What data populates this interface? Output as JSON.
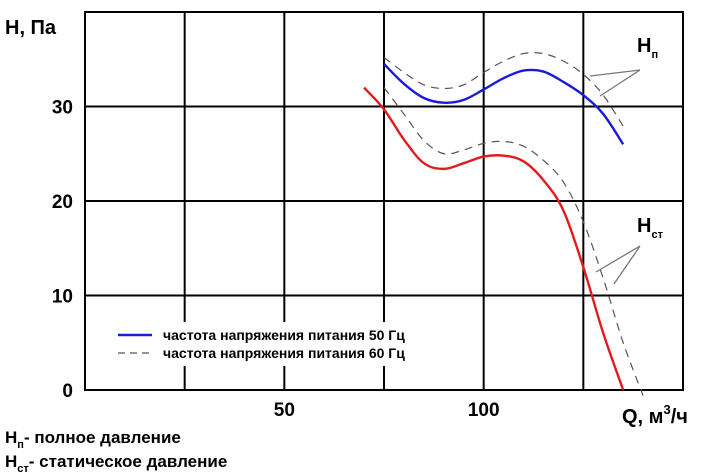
{
  "chart_data": {
    "type": "line",
    "x_axis": {
      "label": "Q, м",
      "label_sup": "3",
      "label_tail": "/ч",
      "ticks": [
        50,
        100
      ],
      "range": [
        0,
        150
      ]
    },
    "y_axis": {
      "label": "H, Па",
      "ticks": [
        0,
        10,
        20,
        30
      ],
      "range": [
        0,
        40
      ]
    },
    "grid": true,
    "legend": {
      "placement": "bottom-left",
      "entries": [
        {
          "label": "частота напряжения питания 50 Гц",
          "style": "solid",
          "color": "#1a1adb"
        },
        {
          "label": "частота напряжения питания 60 Гц",
          "style": "dashed",
          "color": "#555555"
        }
      ]
    },
    "series": [
      {
        "name": "Hп 50 Гц",
        "color": "#1a1adb",
        "style": "solid",
        "points": [
          [
            75,
            34.5
          ],
          [
            80,
            32.4
          ],
          [
            85,
            30.9
          ],
          [
            90,
            30.4
          ],
          [
            95,
            30.7
          ],
          [
            100,
            31.8
          ],
          [
            105,
            33.0
          ],
          [
            110,
            33.8
          ],
          [
            115,
            33.7
          ],
          [
            120,
            32.6
          ],
          [
            125,
            31.2
          ],
          [
            130,
            29.2
          ],
          [
            135,
            26.0
          ]
        ]
      },
      {
        "name": "Hп 60 Гц",
        "color": "#555555",
        "style": "dashed",
        "points": [
          [
            75,
            35.2
          ],
          [
            80,
            33.6
          ],
          [
            85,
            32.3
          ],
          [
            90,
            31.9
          ],
          [
            95,
            32.3
          ],
          [
            100,
            33.6
          ],
          [
            105,
            34.8
          ],
          [
            110,
            35.6
          ],
          [
            115,
            35.6
          ],
          [
            120,
            34.8
          ],
          [
            125,
            33.4
          ],
          [
            130,
            31.2
          ],
          [
            135,
            27.9
          ]
        ]
      },
      {
        "name": "Hст 50 Гц",
        "color": "#e01c1c",
        "style": "solid",
        "points": [
          [
            70,
            32.0
          ],
          [
            75,
            29.7
          ],
          [
            80,
            26.5
          ],
          [
            85,
            24.0
          ],
          [
            90,
            23.4
          ],
          [
            95,
            24.0
          ],
          [
            100,
            24.7
          ],
          [
            105,
            24.8
          ],
          [
            110,
            24.2
          ],
          [
            115,
            22.2
          ],
          [
            120,
            19.0
          ],
          [
            125,
            13.0
          ],
          [
            130,
            6.0
          ],
          [
            135,
            0.0
          ]
        ]
      },
      {
        "name": "Hст 60 Гц",
        "color": "#555555",
        "style": "dashed",
        "points": [
          [
            75,
            32.0
          ],
          [
            80,
            29.2
          ],
          [
            85,
            26.4
          ],
          [
            90,
            25.0
          ],
          [
            95,
            25.4
          ],
          [
            100,
            26.1
          ],
          [
            105,
            26.3
          ],
          [
            110,
            25.8
          ],
          [
            115,
            24.3
          ],
          [
            120,
            22.0
          ],
          [
            125,
            17.8
          ],
          [
            130,
            11.8
          ],
          [
            135,
            5.0
          ],
          [
            140,
            -0.6
          ]
        ]
      }
    ],
    "curve_labels": [
      {
        "main": "H",
        "sub": "п"
      },
      {
        "main": "H",
        "sub": "ст"
      }
    ],
    "notes": [
      {
        "main": "H",
        "sub": "п",
        "text": "- полное давление"
      },
      {
        "main": "H",
        "sub": "ст",
        "text": "- статическое давление"
      }
    ]
  }
}
